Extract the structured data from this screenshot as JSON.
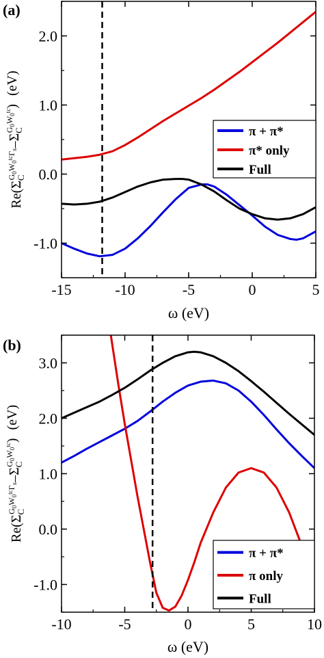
{
  "chart_data": [
    {
      "type": "line",
      "panel_label": "(a)",
      "xlabel": "ω (eV)",
      "ylabel": "Re(ΣC^{G0W0^{tc}}−ΣC^{G0W0^{tc}})  (eV)",
      "ylabel_parts": {
        "prefix": "Re(",
        "s1": "Σ",
        "sub1": "C",
        "sup1": "G",
        "sup1b": "0",
        "sup1c": "W",
        "sup1d": "0",
        "sup1e": "tc",
        "sup1f": "Γ",
        "sup1g": "x",
        "minus": "–",
        "s2": "Σ",
        "sub2": "C",
        "sup2": "G",
        "sup2b": "0",
        "sup2c": "W",
        "sup2d": "0",
        "sup2e": "tc",
        "suffix": ")",
        "unit": "(eV)"
      },
      "xlim": [
        -15,
        5
      ],
      "ylim": [
        -1.5,
        2.5
      ],
      "xticks": [
        -15,
        -10,
        -5,
        0,
        5
      ],
      "xtick_labels": [
        "-15",
        "-10",
        "-5",
        "0",
        "5"
      ],
      "yticks": [
        -1.0,
        0.0,
        1.0,
        2.0
      ],
      "ytick_labels": [
        "-1.0",
        "0.0",
        "1.0",
        "2.0"
      ],
      "vline_x": -11.8,
      "legend_position": "right",
      "series": [
        {
          "name": "π + π*",
          "color": "#0000dd",
          "x": [
            -15,
            -14,
            -13,
            -12,
            -11,
            -10,
            -9,
            -8,
            -7,
            -6,
            -5,
            -4,
            -3.5,
            -3,
            -2,
            -1,
            0,
            1,
            2,
            3,
            3.5,
            4,
            5
          ],
          "y": [
            -1.0,
            -1.08,
            -1.15,
            -1.19,
            -1.17,
            -1.08,
            -0.93,
            -0.75,
            -0.55,
            -0.36,
            -0.2,
            -0.15,
            -0.15,
            -0.18,
            -0.3,
            -0.45,
            -0.6,
            -0.76,
            -0.88,
            -0.94,
            -0.95,
            -0.93,
            -0.83
          ]
        },
        {
          "name": "π* only",
          "color": "#dd0000",
          "x": [
            -15,
            -14,
            -13,
            -12,
            -11,
            -10,
            -9,
            -8,
            -7,
            -6,
            -5,
            -4,
            -3,
            -2,
            -1,
            0,
            1,
            2,
            3,
            4,
            5
          ],
          "y": [
            0.21,
            0.23,
            0.25,
            0.28,
            0.33,
            0.42,
            0.53,
            0.65,
            0.77,
            0.88,
            0.99,
            1.1,
            1.22,
            1.35,
            1.48,
            1.62,
            1.76,
            1.9,
            2.05,
            2.2,
            2.35
          ]
        },
        {
          "name": "Full",
          "color": "#000000",
          "x": [
            -15,
            -14,
            -13,
            -12,
            -11,
            -10,
            -9,
            -8,
            -7,
            -6,
            -5.5,
            -5,
            -4,
            -3,
            -2,
            -1,
            0,
            1,
            2,
            3,
            4,
            5
          ],
          "y": [
            -0.43,
            -0.44,
            -0.43,
            -0.4,
            -0.34,
            -0.26,
            -0.18,
            -0.12,
            -0.08,
            -0.07,
            -0.07,
            -0.08,
            -0.15,
            -0.25,
            -0.38,
            -0.5,
            -0.58,
            -0.64,
            -0.66,
            -0.64,
            -0.58,
            -0.48
          ]
        }
      ]
    },
    {
      "type": "line",
      "panel_label": "(b)",
      "xlabel": "ω (eV)",
      "xlim": [
        -10,
        10
      ],
      "ylim": [
        -1.5,
        3.5
      ],
      "xticks": [
        -10,
        -5,
        0,
        5,
        10
      ],
      "xtick_labels": [
        "-10",
        "-5",
        "0",
        "5",
        "10"
      ],
      "yticks": [
        -1.0,
        0.0,
        1.0,
        2.0,
        3.0
      ],
      "ytick_labels": [
        "-1.0",
        "0.0",
        "1.0",
        "2.0",
        "3.0"
      ],
      "vline_x": -2.8,
      "legend_position": "bottom-right",
      "series": [
        {
          "name": "π + π*",
          "color": "#0000dd",
          "x": [
            -10,
            -9,
            -8,
            -7,
            -6,
            -5,
            -4,
            -3,
            -2,
            -1,
            0,
            1,
            2,
            3,
            4,
            5,
            6,
            7,
            8,
            9,
            10
          ],
          "y": [
            1.2,
            1.32,
            1.45,
            1.57,
            1.69,
            1.81,
            1.95,
            2.12,
            2.3,
            2.46,
            2.59,
            2.66,
            2.68,
            2.63,
            2.5,
            2.3,
            2.06,
            1.8,
            1.55,
            1.32,
            1.1
          ]
        },
        {
          "name": "π only",
          "color": "#dd0000",
          "x": [
            -6.1,
            -5.5,
            -5,
            -4.5,
            -4,
            -3.5,
            -3,
            -2.5,
            -2,
            -1.5,
            -1,
            -0.5,
            0,
            0.5,
            1,
            2,
            3,
            4,
            5,
            6,
            7,
            8,
            9,
            10
          ],
          "y": [
            3.5,
            2.6,
            1.9,
            1.25,
            0.6,
            0.0,
            -0.6,
            -1.15,
            -1.42,
            -1.47,
            -1.4,
            -1.2,
            -0.92,
            -0.6,
            -0.25,
            0.3,
            0.75,
            1.02,
            1.1,
            1.02,
            0.75,
            0.3,
            -0.3,
            -1.0
          ]
        },
        {
          "name": "Full",
          "color": "#000000",
          "x": [
            -10,
            -9,
            -8,
            -7,
            -6,
            -5,
            -4,
            -3,
            -2,
            -1,
            0,
            0.5,
            1,
            2,
            3,
            4,
            5,
            6,
            7,
            8,
            9,
            10
          ],
          "y": [
            2.0,
            2.1,
            2.2,
            2.3,
            2.42,
            2.55,
            2.7,
            2.86,
            3.0,
            3.12,
            3.19,
            3.2,
            3.19,
            3.12,
            3.0,
            2.85,
            2.67,
            2.48,
            2.28,
            2.08,
            1.89,
            1.7
          ]
        }
      ]
    }
  ]
}
